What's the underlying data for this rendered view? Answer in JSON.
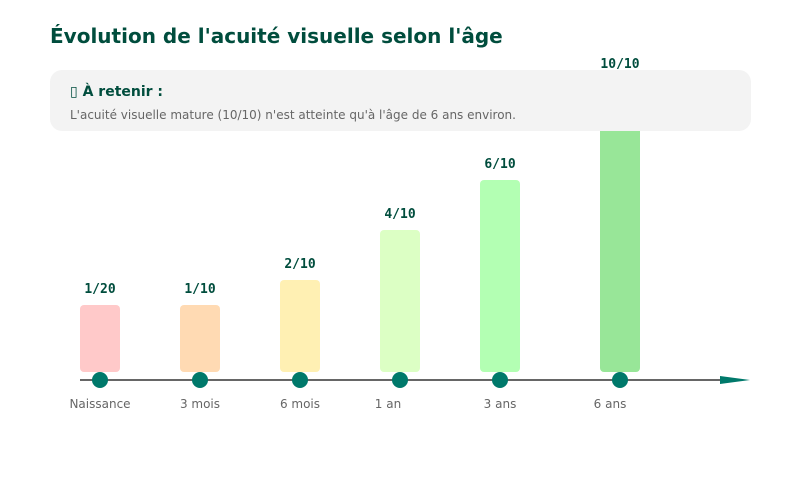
{
  "title": "Évolution de l'acuité visuelle selon l'âge",
  "note": {
    "icon": "▯",
    "title": "À retenir :",
    "text": "L'acuité visuelle mature (10/10) n'est atteinte qu'à l'âge de 6 ans environ."
  },
  "colors": {
    "title": "#004d3d",
    "dot": "#00796b",
    "axis": "#666666"
  },
  "chart_data": {
    "type": "bar",
    "title": "Évolution de l'acuité visuelle selon l'âge",
    "categories": [
      "Naissance",
      "3 mois",
      "6 mois",
      "1 an",
      "3 ans",
      "6 ans"
    ],
    "values": [
      0.05,
      0.1,
      0.2,
      0.4,
      0.6,
      1.0
    ],
    "labels": [
      "1/20",
      "1/10",
      "2/10",
      "4/10",
      "6/10",
      "10/10"
    ],
    "bar_colors": [
      "#ffc9c9",
      "#ffdab3",
      "#fff0b3",
      "#dcffc4",
      "#b3ffb3",
      "#98e698"
    ],
    "xlabel": "",
    "ylabel": "",
    "ylim": [
      0,
      1
    ]
  }
}
